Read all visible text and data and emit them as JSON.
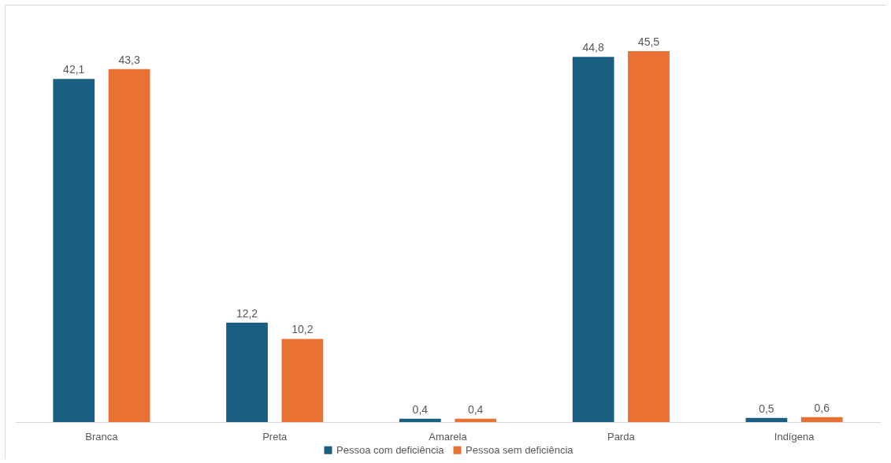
{
  "chart_data": {
    "type": "bar",
    "categories": [
      "Branca",
      "Preta",
      "Amarela",
      "Parda",
      "Indígena"
    ],
    "series": [
      {
        "name": "Pessoa com deficiência",
        "color": "#1a5f82",
        "values": [
          42.1,
          12.2,
          0.4,
          44.8,
          0.5
        ],
        "value_labels": [
          "42,1",
          "12,2",
          "0,4",
          "44,8",
          "0,5"
        ]
      },
      {
        "name": "Pessoa sem deficiência",
        "color": "#e97132",
        "values": [
          43.3,
          10.2,
          0.4,
          45.5,
          0.6
        ],
        "value_labels": [
          "43,3",
          "10,2",
          "0,4",
          "45,5",
          "0,6"
        ]
      }
    ],
    "legend": "bottom"
  }
}
